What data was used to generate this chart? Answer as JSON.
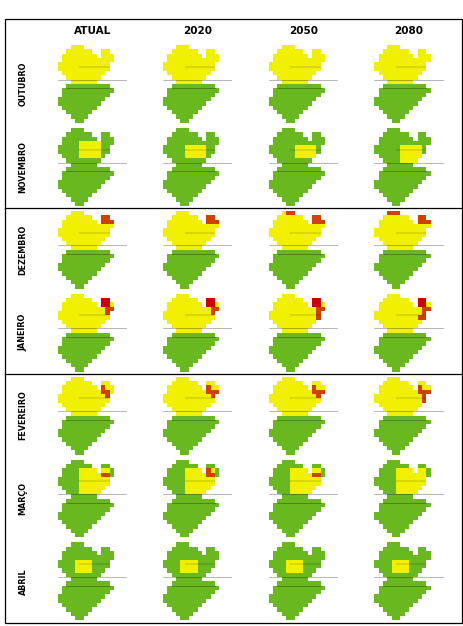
{
  "col_headers": [
    "ATUAL",
    "2020",
    "2050",
    "2080"
  ],
  "row_labels": [
    "OUTUBRO",
    "NOVEMBRO",
    "DEZEMBRO",
    "JANEIRO",
    "FEVEREIRO",
    "MARÇO",
    "ABRIL"
  ],
  "col_header_fontsize": 7.5,
  "row_label_fontsize": 5.8,
  "bg_color": "#ffffff",
  "map_colors": {
    "Y": "#f0f000",
    "G": "#6ab820",
    "O": "#d04000",
    "R": "#cc0000",
    "W": "#ffffff"
  },
  "figsize": [
    4.64,
    6.26
  ],
  "dpi": 100,
  "shape_mask": [
    [
      0,
      0,
      0,
      1,
      1,
      1,
      0,
      0,
      0,
      0,
      0,
      0,
      0,
      0,
      0,
      0
    ],
    [
      0,
      0,
      1,
      1,
      1,
      1,
      1,
      1,
      0,
      0,
      1,
      1,
      0,
      0,
      0,
      0
    ],
    [
      0,
      1,
      1,
      1,
      1,
      1,
      1,
      1,
      1,
      0,
      1,
      1,
      1,
      0,
      0,
      0
    ],
    [
      0,
      1,
      1,
      1,
      1,
      1,
      1,
      1,
      1,
      1,
      1,
      1,
      1,
      0,
      0,
      0
    ],
    [
      1,
      1,
      1,
      1,
      1,
      1,
      1,
      1,
      1,
      1,
      1,
      1,
      0,
      0,
      0,
      0
    ],
    [
      1,
      1,
      1,
      1,
      1,
      1,
      1,
      1,
      1,
      1,
      1,
      1,
      0,
      0,
      0,
      0
    ],
    [
      0,
      1,
      1,
      1,
      1,
      1,
      1,
      1,
      1,
      1,
      1,
      0,
      0,
      0,
      0,
      0
    ],
    [
      0,
      0,
      1,
      1,
      1,
      1,
      1,
      1,
      1,
      1,
      0,
      0,
      0,
      0,
      0,
      0
    ],
    [
      0,
      0,
      0,
      1,
      1,
      1,
      1,
      1,
      1,
      0,
      0,
      0,
      0,
      0,
      0,
      0
    ],
    [
      0,
      0,
      1,
      1,
      1,
      1,
      1,
      1,
      1,
      1,
      1,
      1,
      0,
      0,
      0,
      0
    ],
    [
      0,
      1,
      1,
      1,
      1,
      1,
      1,
      1,
      1,
      1,
      1,
      1,
      1,
      0,
      0,
      0
    ],
    [
      0,
      1,
      1,
      1,
      1,
      1,
      1,
      1,
      1,
      1,
      1,
      1,
      0,
      0,
      0,
      0
    ],
    [
      1,
      1,
      1,
      1,
      1,
      1,
      1,
      1,
      1,
      1,
      1,
      0,
      0,
      0,
      0,
      0
    ],
    [
      1,
      1,
      1,
      1,
      1,
      1,
      1,
      1,
      1,
      1,
      0,
      0,
      0,
      0,
      0,
      0
    ],
    [
      0,
      1,
      1,
      1,
      1,
      1,
      1,
      1,
      1,
      0,
      0,
      0,
      0,
      0,
      0,
      0
    ],
    [
      0,
      0,
      1,
      1,
      1,
      1,
      1,
      1,
      0,
      0,
      0,
      0,
      0,
      0,
      0,
      0
    ],
    [
      0,
      0,
      0,
      1,
      1,
      1,
      1,
      0,
      0,
      0,
      0,
      0,
      0,
      0,
      0,
      0
    ],
    [
      0,
      0,
      0,
      0,
      1,
      1,
      0,
      0,
      0,
      0,
      0,
      0,
      0,
      0,
      0,
      0
    ]
  ]
}
